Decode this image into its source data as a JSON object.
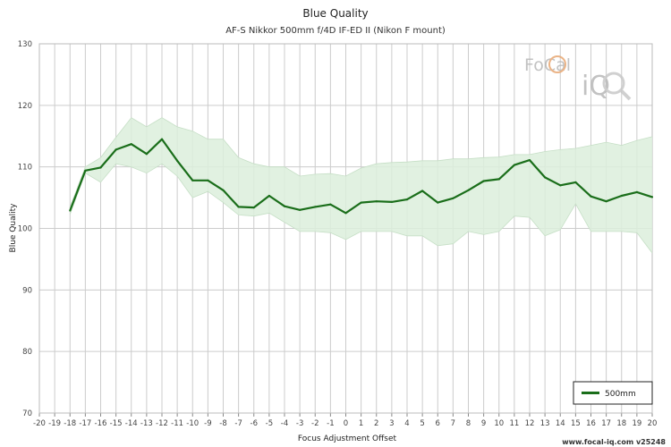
{
  "chart_data": {
    "type": "line",
    "title": "Blue Quality",
    "subtitle": "AF-S Nikkor 500mm f/4D IF-ED II (Nikon F mount)",
    "xlabel": "Focus Adjustment Offset",
    "ylabel": "Blue Quality",
    "xlim": [
      -20,
      20
    ],
    "ylim": [
      70,
      130
    ],
    "x_ticks": [
      "-20",
      "-19",
      "-18",
      "-17",
      "-16",
      "-15",
      "-14",
      "-13",
      "-12",
      "-11",
      "-10",
      "-9",
      "-8",
      "-7",
      "-6",
      "-5",
      "-4",
      "-3",
      "-2",
      "-1",
      "0",
      "1",
      "2",
      "3",
      "4",
      "5",
      "6",
      "7",
      "8",
      "9",
      "10",
      "11",
      "12",
      "13",
      "14",
      "15",
      "16",
      "17",
      "18",
      "19",
      "20"
    ],
    "y_ticks": [
      "70",
      "80",
      "90",
      "100",
      "110",
      "120",
      "130"
    ],
    "grid": true,
    "legend_position": "bottom-right",
    "series": [
      {
        "name": "500mm",
        "color": "#1a6e1a",
        "band_color": "#dcefdc",
        "x": [
          -18,
          -17,
          -16,
          -15,
          -14,
          -13,
          -12,
          -11,
          -10,
          -9,
          -8,
          -7,
          -6,
          -5,
          -4,
          -3,
          -2,
          -1,
          0,
          1,
          2,
          3,
          4,
          5,
          6,
          7,
          8,
          9,
          10,
          11,
          12,
          13,
          14,
          15,
          16,
          17,
          18,
          19,
          20
        ],
        "values": [
          102.9,
          109.4,
          109.9,
          112.8,
          113.7,
          112.1,
          114.5,
          111.0,
          107.8,
          107.8,
          106.2,
          103.5,
          103.4,
          105.3,
          103.6,
          103.0,
          103.5,
          103.9,
          102.5,
          104.2,
          104.4,
          104.3,
          104.7,
          106.1,
          104.2,
          104.9,
          106.2,
          107.7,
          108.0,
          110.3,
          111.1,
          108.3,
          107.0,
          107.5,
          105.2,
          104.4,
          105.3,
          105.9,
          105.1
        ],
        "upper": [
          103.5,
          110.0,
          111.5,
          114.8,
          118.0,
          116.5,
          118.0,
          116.5,
          115.8,
          114.5,
          114.5,
          111.5,
          110.5,
          110.0,
          110.0,
          108.5,
          108.8,
          108.9,
          108.5,
          109.8,
          110.5,
          110.7,
          110.8,
          111.0,
          111.0,
          111.3,
          111.3,
          111.5,
          111.6,
          112.0,
          112.0,
          112.5,
          112.8,
          113.0,
          113.5,
          114.0,
          113.5,
          114.3,
          114.9
        ],
        "lower": [
          102.3,
          109.0,
          107.5,
          110.5,
          110.0,
          109.0,
          110.5,
          108.5,
          105.0,
          106.0,
          104.2,
          102.2,
          102.0,
          102.5,
          101.0,
          99.5,
          99.5,
          99.3,
          98.2,
          99.5,
          99.5,
          99.5,
          98.8,
          98.8,
          97.2,
          97.5,
          99.5,
          99.0,
          99.5,
          102.0,
          101.8,
          98.8,
          99.8,
          104.0,
          99.5,
          99.5,
          99.5,
          99.3,
          96.0
        ]
      }
    ]
  },
  "logo": {
    "text_top": "FoCal",
    "text_bottom": "iQ"
  },
  "footer": {
    "text": "www.focal-iq.com  v25248"
  }
}
